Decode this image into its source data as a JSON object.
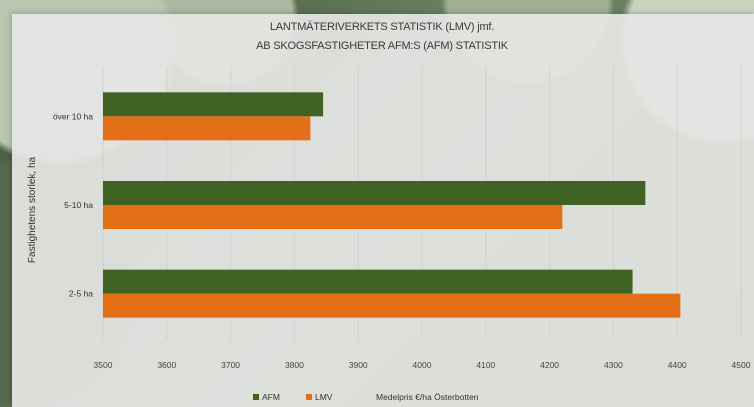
{
  "chart_data": {
    "type": "bar",
    "orientation": "horizontal",
    "title_lines": [
      "LANTMÄTERIVERKETS STATISTIK (LMV) jmf.",
      "AB SKOGSFASTIGHETER AFM:S (AFM) STATISTIK"
    ],
    "ylabel": "Fastighetens storlek, ha",
    "xlabel": "",
    "categories": [
      "över 10 ha",
      "5-10 ha",
      "2-5 ha"
    ],
    "series": [
      {
        "name": "AFM",
        "values": [
          3845,
          4350,
          4330
        ],
        "color": "#3f6122"
      },
      {
        "name": "LMV",
        "values": [
          3825,
          4220,
          4405
        ],
        "color": "#e36f16"
      }
    ],
    "xlim": [
      3500,
      4500
    ],
    "xticks": [
      3500,
      3600,
      3700,
      3800,
      3900,
      4000,
      4100,
      4200,
      4300,
      4400,
      4500
    ],
    "grid": true,
    "legend_position": "bottom",
    "legend_note": "Medelpris €/ha Österbotten"
  }
}
